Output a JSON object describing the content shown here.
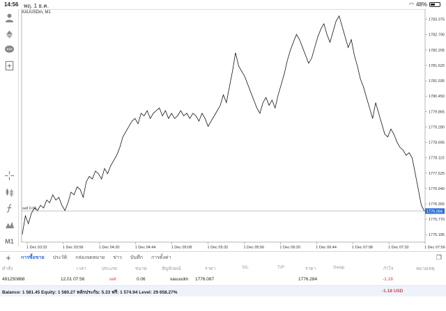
{
  "status_bar": {
    "time": "14:56",
    "date": "พฤ. 1 ธ.ค.",
    "battery": "48%",
    "battery_level": 0.48
  },
  "chart": {
    "symbol_label": "XAUUSDm, M1",
    "current_price": "1776.084",
    "order_line_label": "sell 0.06",
    "accent_color": "#2e6fd6",
    "loss_color": "#e23b3b"
  },
  "chart_data": {
    "type": "line",
    "title": "XAUUSDm, M1",
    "x_ticks": [
      "1 Dec 03:32",
      "1 Dec 03:56",
      "1 Dec 04:20",
      "1 Dec 04:44",
      "1 Dec 05:08",
      "1 Dec 05:32",
      "1 Dec 05:56",
      "1 Dec 06:20",
      "1 Dec 06:44",
      "1 Dec 07:08",
      "1 Dec 07:32",
      "1 Dec 07:56"
    ],
    "y_ticks": [
      "1783.375",
      "1782.790",
      "1782.205",
      "1781.620",
      "1781.035",
      "1780.450",
      "1779.865",
      "1779.280",
      "1778.695",
      "1778.110",
      "1777.525",
      "1776.940",
      "1776.355",
      "1775.770",
      "1775.185"
    ],
    "ylim": [
      1774.9,
      1783.55
    ],
    "order_line_price": 1776.087,
    "series": [
      {
        "values": [
          1775.2,
          1775.9,
          1775.6,
          1776.0,
          1776.2,
          1776.1,
          1776.3,
          1776.2,
          1776.5,
          1776.4,
          1776.7,
          1776.5,
          1776.6,
          1776.3,
          1776.1,
          1776.4,
          1776.8,
          1776.7,
          1777.0,
          1776.9,
          1776.6,
          1777.2,
          1777.4,
          1777.3,
          1777.6,
          1777.5,
          1777.3,
          1777.7,
          1777.5,
          1777.8,
          1778.0,
          1778.2,
          1778.5,
          1778.9,
          1779.1,
          1779.3,
          1779.5,
          1779.6,
          1779.4,
          1779.8,
          1779.7,
          1779.9,
          1779.6,
          1779.8,
          1779.9,
          1780.0,
          1779.7,
          1779.9,
          1779.6,
          1779.8,
          1779.6,
          1779.7,
          1779.9,
          1779.7,
          1779.8,
          1779.6,
          1779.8,
          1779.7,
          1779.5,
          1779.8,
          1779.6,
          1779.3,
          1779.5,
          1779.7,
          1779.9,
          1780.1,
          1780.5,
          1780.2,
          1780.8,
          1781.4,
          1782.1,
          1781.6,
          1781.4,
          1781.2,
          1780.9,
          1780.6,
          1780.3,
          1780.0,
          1779.8,
          1780.2,
          1780.4,
          1780.1,
          1780.3,
          1780.0,
          1780.5,
          1780.9,
          1781.3,
          1781.8,
          1782.2,
          1782.5,
          1782.8,
          1782.6,
          1782.3,
          1782.0,
          1781.7,
          1781.9,
          1782.3,
          1782.7,
          1783.0,
          1783.2,
          1782.8,
          1782.5,
          1782.9,
          1783.3,
          1783.5,
          1783.1,
          1782.7,
          1782.3,
          1782.6,
          1782.0,
          1781.6,
          1781.1,
          1780.8,
          1780.4,
          1780.0,
          1779.6,
          1780.2,
          1779.8,
          1779.4,
          1779.0,
          1778.9,
          1779.2,
          1779.0,
          1778.7,
          1778.5,
          1778.4,
          1778.2,
          1778.3,
          1778.1,
          1777.5,
          1776.9,
          1776.3,
          1776.08
        ]
      }
    ],
    "grid": false
  },
  "toolbar": {
    "icons": [
      "account-icon",
      "trade-icon",
      "chat-icon",
      "new-chart-icon",
      "crosshair-icon",
      "chart-type-icon",
      "indicator-icon",
      "objects-icon"
    ],
    "timeframe": "M1"
  },
  "tabs": {
    "items": [
      "การซื้อขาย",
      "ประวัติ",
      "กล่องจดหมาย",
      "ข่าว",
      "บันทึก",
      "การตั้งค่า"
    ],
    "active_index": 0
  },
  "table": {
    "headers": [
      "คำสั่ง",
      "เวลา",
      "ประเภท",
      "ขนาด",
      "สัญลักษณ์",
      "ราคา",
      "S/L",
      "T/P",
      "ราคา",
      "Swap",
      "กำไร",
      "หมายเหตุ"
    ],
    "rows": [
      {
        "order": "491250868",
        "time": "12.01 07:56",
        "type": "sell",
        "size": "0.06",
        "symbol": "xauusdm",
        "open_price": "1776.087",
        "sl": "",
        "tp": "",
        "price": "1776.284",
        "swap": "",
        "profit": "-1.18",
        "comment": ""
      }
    ]
  },
  "balance": {
    "text": "Balance: 1 581.45 Equity: 1 580.27 หลักประกัน: 5.33 ฟรี: 1 574.94 Level: 29 658.27%",
    "total": "-1.18  USD"
  }
}
